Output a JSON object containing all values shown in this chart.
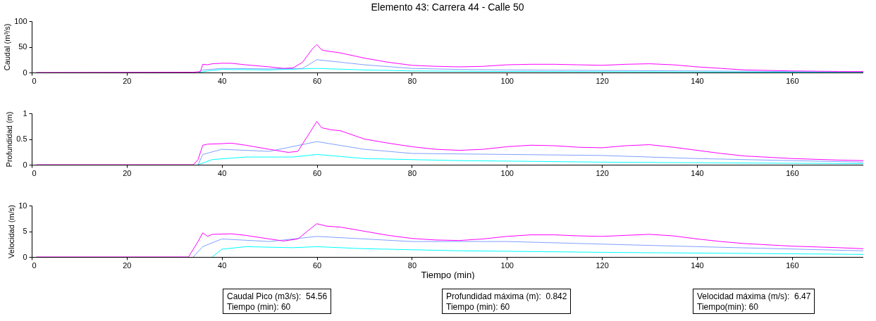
{
  "chart_data": [
    {
      "type": "line",
      "title": "Elemento 43: Carrera 44 - Calle 50",
      "ylabel": "Caudal (m³/s)",
      "xlim": [
        0,
        175
      ],
      "xticks": [
        0,
        20,
        40,
        60,
        80,
        100,
        120,
        140,
        160
      ],
      "ylim": [
        0,
        100
      ],
      "yticks": [
        0,
        50,
        100
      ],
      "series": [
        {
          "color": "#00ffff",
          "x": [
            35,
            37,
            40,
            50,
            60,
            70,
            80,
            100,
            175
          ],
          "values": [
            0,
            3,
            6,
            5,
            8,
            5,
            3,
            2,
            0.5
          ]
        },
        {
          "color": "#7f9fff",
          "x": [
            35,
            36,
            40,
            50,
            57,
            60,
            65,
            70,
            80,
            90,
            100,
            120,
            140,
            175
          ],
          "values": [
            0,
            5,
            8,
            7,
            8,
            25,
            20,
            15,
            8,
            6,
            5,
            4,
            3,
            1
          ]
        },
        {
          "color": "#ff00ff",
          "x": [
            1,
            34,
            35.5,
            36,
            37,
            38,
            40,
            42,
            45,
            50,
            53,
            55,
            57,
            59,
            60,
            61,
            62,
            65,
            70,
            75,
            80,
            85,
            90,
            95,
            100,
            105,
            110,
            115,
            120,
            125,
            130,
            135,
            140,
            145,
            150,
            155,
            160,
            165,
            170,
            175
          ],
          "values": [
            0,
            0.5,
            2,
            16,
            15,
            17,
            18,
            18,
            15,
            11,
            8,
            9,
            20,
            45,
            54.56,
            44,
            42,
            38,
            28,
            20,
            14,
            12,
            11,
            12,
            15,
            16,
            16,
            15,
            14,
            16,
            17,
            15,
            11,
            8,
            5,
            4,
            3,
            2.5,
            2,
            2
          ]
        }
      ]
    },
    {
      "type": "line",
      "ylabel": "Profundidad (m)",
      "xlim": [
        0,
        175
      ],
      "xticks": [
        0,
        20,
        40,
        60,
        80,
        100,
        120,
        140,
        160
      ],
      "ylim": [
        0,
        1
      ],
      "yticks": [
        0,
        0.5,
        1
      ],
      "series": [
        {
          "color": "#00ffff",
          "x": [
            35,
            38,
            45,
            55,
            60,
            70,
            90,
            120,
            175
          ],
          "values": [
            0,
            0.1,
            0.15,
            0.15,
            0.2,
            0.12,
            0.08,
            0.05,
            0.02
          ]
        },
        {
          "color": "#7f9fff",
          "x": [
            35,
            36,
            40,
            50,
            60,
            70,
            80,
            100,
            120,
            140,
            175
          ],
          "values": [
            0,
            0.2,
            0.3,
            0.26,
            0.45,
            0.3,
            0.22,
            0.2,
            0.18,
            0.12,
            0.05
          ]
        },
        {
          "color": "#ff00ff",
          "x": [
            1,
            34,
            35,
            36,
            37,
            40,
            42,
            45,
            50,
            54,
            56,
            58,
            60,
            61,
            63,
            65,
            70,
            75,
            80,
            85,
            90,
            95,
            100,
            105,
            110,
            115,
            120,
            125,
            130,
            135,
            140,
            145,
            150,
            160,
            170,
            175
          ],
          "values": [
            0,
            0,
            0.1,
            0.38,
            0.4,
            0.41,
            0.42,
            0.38,
            0.3,
            0.24,
            0.26,
            0.55,
            0.842,
            0.72,
            0.68,
            0.66,
            0.5,
            0.42,
            0.35,
            0.3,
            0.28,
            0.3,
            0.35,
            0.38,
            0.37,
            0.34,
            0.33,
            0.37,
            0.39,
            0.34,
            0.28,
            0.22,
            0.17,
            0.12,
            0.09,
            0.08
          ]
        }
      ]
    },
    {
      "type": "line",
      "xlabel": "Tiempo (min)",
      "ylabel": "Velocidad (m/s)",
      "xlim": [
        0,
        175
      ],
      "xticks": [
        0,
        20,
        40,
        60,
        80,
        100,
        120,
        140,
        160
      ],
      "ylim": [
        0,
        10
      ],
      "yticks": [
        0,
        5,
        10
      ],
      "annotations": [
        "Caudal Pico (m3/s):  54.56\nTiempo (min): 60",
        "Profundidad máxima (m):  0.842\nTiempo (min): 60",
        "Velocidad máxima (m/s):  6.47\nTiempo(min): 60"
      ],
      "series": [
        {
          "color": "#00ffff",
          "x": [
            38,
            40,
            45,
            55,
            60,
            70,
            90,
            120,
            175
          ],
          "values": [
            0,
            1.5,
            2,
            1.8,
            2,
            1.6,
            1.2,
            0.9,
            0.5
          ]
        },
        {
          "color": "#7f9fff",
          "x": [
            34,
            36,
            40,
            50,
            60,
            70,
            80,
            100,
            120,
            140,
            175
          ],
          "values": [
            0,
            2,
            3.5,
            3,
            4,
            3.5,
            3,
            3,
            2.5,
            2,
            1.2
          ]
        },
        {
          "color": "#ff00ff",
          "x": [
            1,
            33,
            35,
            36,
            37,
            38,
            42,
            45,
            50,
            53,
            56,
            58,
            60,
            62,
            65,
            70,
            75,
            80,
            85,
            90,
            95,
            100,
            105,
            110,
            115,
            120,
            125,
            130,
            135,
            140,
            145,
            150,
            160,
            170,
            175
          ],
          "values": [
            0,
            0,
            3,
            4.7,
            4,
            4.4,
            4.5,
            4.2,
            3.5,
            3.1,
            3.5,
            5,
            6.47,
            6,
            5.8,
            5,
            4.2,
            3.6,
            3.3,
            3.2,
            3.5,
            4,
            4.3,
            4.3,
            4.1,
            4,
            4.2,
            4.4,
            4.1,
            3.5,
            3,
            2.6,
            2.1,
            1.8,
            1.6
          ]
        }
      ]
    }
  ]
}
